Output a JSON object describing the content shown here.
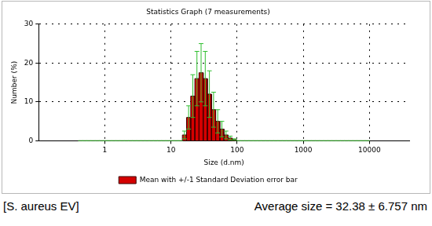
{
  "chart_data": {
    "type": "histogram",
    "title": "Statistics Graph (7 measurements)",
    "x_label": "Size (d.nm)",
    "y_label": "Number (%)",
    "bins": [
      0.4,
      0.4622,
      0.534,
      0.617,
      0.714,
      0.825,
      0.953,
      1.101,
      1.273,
      1.471,
      1.7,
      1.965,
      2.27,
      2.624,
      3.032,
      3.504,
      4.05,
      4.68,
      5.408,
      6.25,
      7.223,
      8.348,
      9.645,
      11.15,
      12.88,
      14.89,
      17.2,
      19.88,
      22.97,
      26.55,
      30.68,
      35.46,
      40.98,
      47.36,
      54.72,
      63.24,
      73.08,
      84.47,
      97.6,
      112.8,
      130.4,
      150.7,
      174.1,
      201.2,
      232.5,
      268.7,
      310.6,
      358.9,
      414.8,
      479.4,
      554.0,
      640.2,
      739.8,
      855.1,
      988.0,
      1142,
      1320,
      1525,
      1762,
      2037,
      2353,
      2720,
      3143,
      3632,
      4198,
      4852,
      5606,
      6478,
      7486,
      8652,
      10000
    ],
    "series": [
      {
        "name": "Mean with +/-1 Standard Deviation error bar",
        "color": "#d40000",
        "values": [
          0,
          0,
          0,
          0,
          0,
          0,
          0,
          0,
          0,
          0,
          0,
          0,
          0,
          0,
          0,
          0,
          0,
          0,
          0,
          0,
          0,
          0,
          0,
          0,
          0,
          1.5,
          6,
          11.5,
          16,
          17.5,
          16,
          12,
          8,
          5,
          3,
          1.5,
          0.7,
          0.3,
          0,
          0,
          0,
          0,
          0,
          0,
          0,
          0,
          0,
          0,
          0,
          0,
          0,
          0,
          0,
          0,
          0,
          0,
          0,
          0,
          0,
          0,
          0,
          0,
          0,
          0,
          0,
          0,
          0,
          0,
          0,
          0
        ],
        "errors": [
          0,
          0,
          0,
          0,
          0,
          0,
          0,
          0,
          0,
          0,
          0,
          0,
          0,
          0,
          0,
          0,
          0,
          0,
          0,
          0,
          0,
          0,
          0,
          0,
          0,
          1,
          3,
          5.5,
          7,
          7.5,
          7,
          6,
          4.5,
          3,
          2,
          1,
          0.5,
          0.2,
          0,
          0,
          0,
          0,
          0,
          0,
          0,
          0,
          0,
          0,
          0,
          0,
          0,
          0,
          0,
          0,
          0,
          0,
          0,
          0,
          0,
          0,
          0,
          0,
          0,
          0,
          0,
          0,
          0,
          0,
          0,
          0
        ]
      }
    ],
    "xlim": [
      0.1,
      40000
    ],
    "xticks": [
      1,
      10,
      100,
      1000,
      10000
    ],
    "ylim": [
      0,
      30
    ],
    "yticks": [
      0,
      10,
      20,
      30
    ],
    "log": "x",
    "grid": true,
    "legend": "bottom",
    "annotations": [
      "[S. aureus EV]",
      "Average size = 32.38 ± 6.757 nm"
    ]
  }
}
